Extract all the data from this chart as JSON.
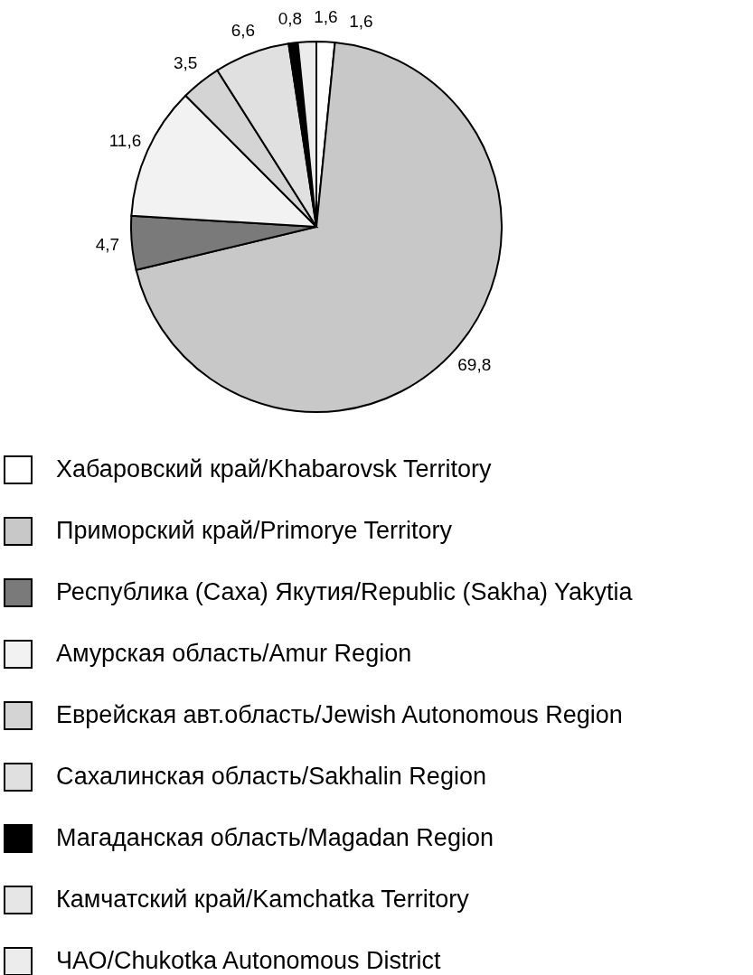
{
  "chart_data": {
    "type": "pie",
    "categories": [
      "Хабаровский край/Khabarovsk Territory",
      "Приморский край/Primorye Territory",
      "Республика (Саха) Якутия/Republic (Sakha) Yakytia",
      "Амурская область/Amur Region",
      "Еврейская авт.область/Jewish Autonomous Region",
      "Сахалинская область/Sakhalin Region",
      "Магаданская область/Magadan Region",
      "Камчатский край/Kamchatka Territory",
      "ЧАО/Chukotka Autonomous District"
    ],
    "values": [
      1.6,
      69.8,
      4.7,
      11.6,
      3.5,
      6.6,
      0.8,
      0,
      1.6
    ],
    "value_labels": [
      "1,6",
      "69,8",
      "4,7",
      "11,6",
      "3,5",
      "6,6",
      "0,8",
      null,
      "1,6"
    ],
    "colors": [
      "#ffffff",
      "#c8c8c8",
      "#7a7a7a",
      "#f2f2f2",
      "#d4d4d4",
      "#e0e0e0",
      "#000000",
      "#e6e6e6",
      "#ececec"
    ],
    "legend": "bottom"
  }
}
